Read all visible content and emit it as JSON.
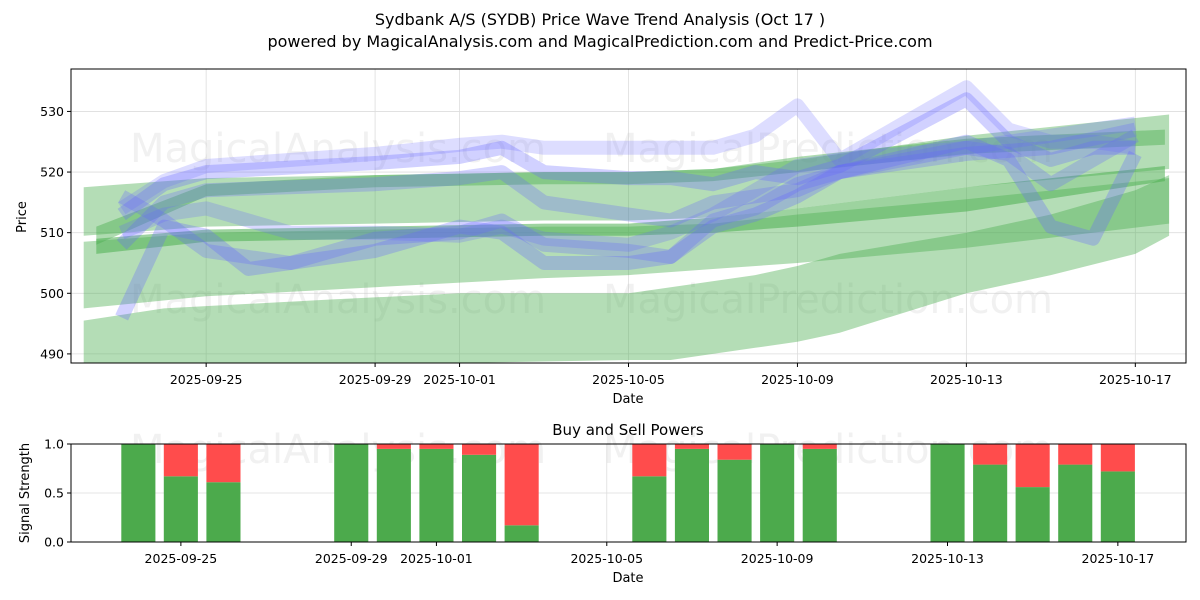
{
  "header": {
    "title": "Sydbank A/S (SYDB) Price Wave Trend Analysis (Oct 17 )",
    "subtitle": "powered by MagicalAnalysis.com and MagicalPrediction.com and Predict-Price.com"
  },
  "watermarks": [
    "MagicalAnalysis.com",
    "MagicalPrediction.com"
  ],
  "colors": {
    "trend_band": "#4caf50",
    "wave_line": "#6666ff",
    "buy": "#4caa4c",
    "sell": "#ff4c4c",
    "grid": "#dddddd"
  },
  "chart_data": [
    {
      "type": "area",
      "title": "",
      "xlabel": "Date",
      "ylabel": "Price",
      "origin_date": "2025-09-25",
      "xlim_days": [
        -3.2,
        23.2
      ],
      "ylim": [
        488.5,
        537.0
      ],
      "grid": true,
      "x_ticks": [
        {
          "day": 0,
          "label": "2025-09-25"
        },
        {
          "day": 4,
          "label": "2025-09-29"
        },
        {
          "day": 6,
          "label": "2025-10-01"
        },
        {
          "day": 10,
          "label": "2025-10-05"
        },
        {
          "day": 14,
          "label": "2025-10-09"
        },
        {
          "day": 18,
          "label": "2025-10-13"
        },
        {
          "day": 22,
          "label": "2025-10-17"
        }
      ],
      "y_ticks": [
        490,
        500,
        510,
        520,
        530
      ],
      "trend_bands": [
        {
          "name": "band-wide-low",
          "opacity": 0.42,
          "x": [
            -2.9,
            -1,
            3,
            6,
            10,
            11,
            13,
            14,
            15,
            18,
            20,
            22,
            22.8
          ],
          "upper": [
            495.5,
            497.5,
            499,
            500,
            500,
            501,
            503,
            504.5,
            506.5,
            510,
            513,
            517,
            519.5
          ],
          "lower": [
            487,
            487.5,
            488,
            488.5,
            489,
            489,
            491,
            492,
            493.5,
            500,
            503,
            506.5,
            509.5
          ]
        },
        {
          "name": "band-mid",
          "opacity": 0.42,
          "x": [
            -2.9,
            0,
            4,
            8,
            10,
            12,
            14,
            18,
            22.8
          ],
          "upper": [
            508.5,
            510,
            510.5,
            511,
            511,
            511.5,
            513,
            515.5,
            519
          ],
          "lower": [
            497.5,
            499.5,
            501,
            502.5,
            503,
            504,
            505,
            507.5,
            511.5
          ]
        },
        {
          "name": "band-upper",
          "opacity": 0.42,
          "x": [
            -2.9,
            0,
            4,
            8,
            10,
            12,
            14,
            18,
            22.8
          ],
          "upper": [
            517.5,
            519,
            519.5,
            520,
            520,
            520.5,
            522,
            526,
            529.5
          ],
          "lower": [
            509.5,
            511,
            511.5,
            512,
            512,
            512.5,
            514,
            517.5,
            520.5
          ]
        },
        {
          "name": "band-thin-mid",
          "opacity": 0.55,
          "x": [
            -2.6,
            0,
            4,
            8,
            10,
            12,
            14,
            18,
            22.7
          ],
          "upper": [
            509,
            510.5,
            511,
            511.5,
            511.5,
            512.5,
            514,
            517.5,
            521
          ],
          "lower": [
            506.5,
            508.5,
            509,
            509.5,
            509.5,
            510,
            511,
            513.5,
            518.5
          ]
        },
        {
          "name": "band-thin-upper",
          "opacity": 0.45,
          "x": [
            -2.6,
            0,
            4,
            8,
            10,
            12,
            14,
            18,
            22.7
          ],
          "upper": [
            511,
            518,
            519.5,
            520,
            520,
            520.5,
            522.5,
            525.5,
            527
          ],
          "lower": [
            508,
            516,
            517.5,
            518,
            518,
            518.5,
            520,
            523,
            524.5
          ]
        }
      ],
      "wave_lines": [
        {
          "name": "wave-1",
          "opacity": 0.22,
          "x": [
            -2,
            -1,
            0,
            4,
            6,
            7,
            8,
            10,
            11,
            12,
            13,
            14,
            15,
            18,
            19,
            20,
            21,
            22
          ],
          "y": [
            514,
            518.5,
            521,
            523,
            524.5,
            525,
            524,
            524,
            524,
            524,
            526,
            531,
            522,
            534,
            527,
            525,
            525,
            524
          ]
        },
        {
          "name": "wave-2",
          "opacity": 0.3,
          "x": [
            -2,
            -1,
            0,
            4,
            6,
            7,
            8,
            10,
            11,
            12,
            13,
            14,
            15,
            18,
            19,
            20,
            21,
            22
          ],
          "y": [
            513,
            518,
            520,
            521.5,
            522.5,
            524,
            520,
            519,
            519,
            518,
            520,
            519,
            521,
            532,
            525,
            522,
            524,
            524
          ]
        },
        {
          "name": "wave-3",
          "opacity": 0.3,
          "x": [
            -2,
            -1,
            0,
            1,
            4,
            6,
            7,
            8,
            10,
            11,
            12,
            13,
            14,
            15,
            18,
            19,
            20,
            21,
            22
          ],
          "y": [
            496,
            511,
            509.5,
            504,
            507,
            511,
            510,
            505,
            505,
            506,
            511,
            513,
            516,
            520,
            525,
            522,
            511,
            509,
            523
          ]
        },
        {
          "name": "wave-4",
          "opacity": 0.28,
          "x": [
            -2,
            -1,
            0,
            2,
            4,
            6,
            7,
            8,
            10,
            11,
            12,
            13,
            14,
            15,
            18,
            20,
            22
          ],
          "y": [
            516,
            512,
            507,
            505,
            509,
            510,
            512,
            508,
            507,
            506,
            512,
            514,
            518,
            520,
            523,
            524,
            527
          ]
        },
        {
          "name": "wave-5",
          "opacity": 0.25,
          "x": [
            -2,
            -1,
            0,
            2,
            4,
            6,
            7,
            8,
            10,
            11,
            12,
            13,
            14,
            15,
            18,
            20,
            22
          ],
          "y": [
            510,
            513,
            514,
            510,
            510,
            509.5,
            511,
            509,
            508,
            510,
            513,
            517,
            521,
            522,
            524,
            526,
            528
          ]
        },
        {
          "name": "wave-6",
          "opacity": 0.28,
          "x": [
            -2,
            -1,
            0,
            4,
            6,
            7,
            8,
            10,
            11,
            12,
            14,
            15,
            18,
            19,
            20,
            22
          ],
          "y": [
            508,
            515,
            517,
            518,
            519,
            520,
            515,
            513,
            512,
            515,
            517,
            520,
            524,
            523,
            518,
            526
          ]
        }
      ]
    },
    {
      "type": "bar",
      "title": "Buy and Sell Powers",
      "xlabel": "Date",
      "ylabel": "Signal Strength",
      "origin_date": "2025-09-25",
      "xlim_days": [
        -2.58,
        23.6
      ],
      "ylim": [
        0,
        1.0
      ],
      "grid": true,
      "x_ticks": [
        {
          "day": 0,
          "label": "2025-09-25"
        },
        {
          "day": 4,
          "label": "2025-09-29"
        },
        {
          "day": 6,
          "label": "2025-10-01"
        },
        {
          "day": 10,
          "label": "2025-10-05"
        },
        {
          "day": 14,
          "label": "2025-10-09"
        },
        {
          "day": 18,
          "label": "2025-10-13"
        },
        {
          "day": 22,
          "label": "2025-10-17"
        }
      ],
      "y_ticks": [
        {
          "v": 0.0,
          "label": "0.0"
        },
        {
          "v": 0.5,
          "label": "0.5"
        },
        {
          "v": 1.0,
          "label": "1.0"
        }
      ],
      "categories": [
        "2025-09-24",
        "2025-09-25",
        "2025-09-26",
        "2025-09-29",
        "2025-09-30",
        "2025-10-01",
        "2025-10-02",
        "2025-10-03",
        "2025-10-06",
        "2025-10-07",
        "2025-10-08",
        "2025-10-09",
        "2025-10-10",
        "2025-10-13",
        "2025-10-14",
        "2025-10-15",
        "2025-10-16",
        "2025-10-17"
      ],
      "days": [
        -1,
        0,
        1,
        4,
        5,
        6,
        7,
        8,
        11,
        12,
        13,
        14,
        15,
        18,
        19,
        20,
        21,
        22
      ],
      "series": [
        {
          "name": "Buy",
          "values": [
            1.0,
            0.67,
            0.61,
            1.0,
            0.95,
            0.95,
            0.89,
            0.17,
            0.67,
            0.95,
            0.84,
            1.0,
            0.95,
            1.0,
            0.79,
            0.56,
            0.79,
            0.72
          ]
        },
        {
          "name": "Sell",
          "values": [
            0.0,
            0.33,
            0.39,
            0.0,
            0.05,
            0.05,
            0.11,
            0.83,
            0.33,
            0.05,
            0.16,
            0.0,
            0.05,
            0.0,
            0.21,
            0.44,
            0.21,
            0.28
          ]
        }
      ]
    }
  ]
}
